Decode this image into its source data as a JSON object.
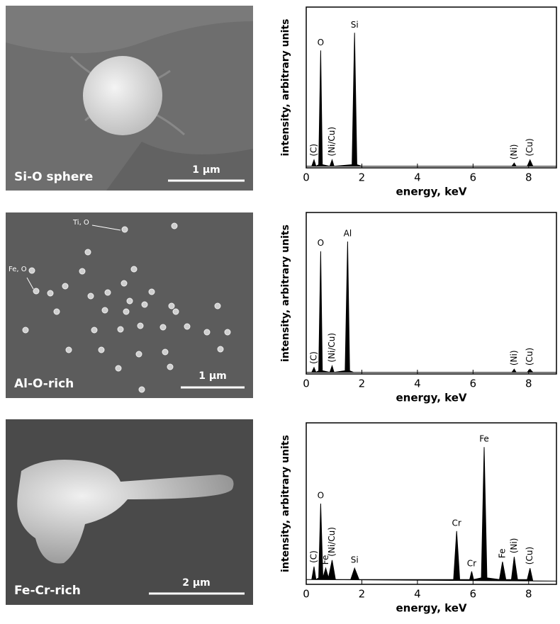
{
  "images": [
    {
      "label": "Si-O sphere",
      "scale_bar": "1 µm"
    },
    {
      "label": "Al-O-rich",
      "scale_bar": "1 µm",
      "callouts": [
        "Ti, O",
        "Fe, O"
      ]
    },
    {
      "label": "Fe-Cr-rich",
      "scale_bar": "2 µm"
    }
  ],
  "chart_data": [
    {
      "type": "area",
      "xlabel": "energy, keV",
      "ylabel": "intensity, arbitrary units",
      "color": "#000000",
      "xlim": [
        0,
        9
      ],
      "xticks": [
        0,
        2,
        4,
        6,
        8
      ],
      "ylim": [
        0,
        100
      ],
      "x": [
        0,
        0.2,
        0.28,
        0.35,
        0.45,
        0.52,
        0.58,
        0.85,
        0.93,
        1.0,
        1.65,
        1.74,
        1.82,
        2.0,
        7.4,
        7.48,
        7.55,
        7.95,
        8.05,
        8.15,
        9
      ],
      "values": [
        1,
        1,
        5,
        1,
        2,
        73,
        2,
        1,
        5,
        1,
        2,
        84,
        2,
        1,
        1,
        3,
        1,
        1,
        5,
        1,
        1
      ],
      "annotations": [
        {
          "text": "(C)",
          "x": 0.28,
          "vertical": true
        },
        {
          "text": "O",
          "x": 0.52,
          "vertical": false
        },
        {
          "text": "(Ni/Cu)",
          "x": 0.93,
          "vertical": true
        },
        {
          "text": "Si",
          "x": 1.74,
          "vertical": false
        },
        {
          "text": "(Ni)",
          "x": 7.48,
          "vertical": true
        },
        {
          "text": "(Cu)",
          "x": 8.05,
          "vertical": true
        }
      ]
    },
    {
      "type": "area",
      "xlabel": "energy, keV",
      "ylabel": "intensity, arbitrary units",
      "color": "#000000",
      "xlim": [
        0,
        9
      ],
      "xticks": [
        0,
        2,
        4,
        6,
        8
      ],
      "ylim": [
        0,
        100
      ],
      "x": [
        0,
        0.2,
        0.28,
        0.35,
        0.45,
        0.52,
        0.58,
        0.85,
        0.93,
        1.0,
        1.4,
        1.49,
        1.56,
        1.7,
        7.4,
        7.48,
        7.55,
        7.95,
        8.05,
        8.15,
        9
      ],
      "values": [
        1,
        1,
        4,
        1,
        2,
        76,
        2,
        1,
        5,
        1,
        2,
        82,
        2,
        1,
        1,
        3,
        1,
        1,
        3,
        1,
        1
      ],
      "annotations": [
        {
          "text": "(C)",
          "x": 0.28,
          "vertical": true
        },
        {
          "text": "O",
          "x": 0.52,
          "vertical": false
        },
        {
          "text": "(Ni/Cu)",
          "x": 0.93,
          "vertical": true
        },
        {
          "text": "Al",
          "x": 1.49,
          "vertical": false
        },
        {
          "text": "(Ni)",
          "x": 7.48,
          "vertical": true
        },
        {
          "text": "(Cu)",
          "x": 8.05,
          "vertical": true
        }
      ]
    },
    {
      "type": "area",
      "xlabel": "energy, keV",
      "ylabel": "intensity, arbitrary units",
      "color": "#000000",
      "xlim": [
        0,
        9
      ],
      "xticks": [
        0,
        2,
        4,
        6,
        8
      ],
      "ylim": [
        0,
        100
      ],
      "x": [
        0,
        0.2,
        0.28,
        0.35,
        0.45,
        0.52,
        0.6,
        0.7,
        0.8,
        0.93,
        1.05,
        1.6,
        1.74,
        1.9,
        5.3,
        5.41,
        5.52,
        5.88,
        5.95,
        6.02,
        6.3,
        6.4,
        6.5,
        6.95,
        7.06,
        7.18,
        7.38,
        7.48,
        7.6,
        7.95,
        8.05,
        8.15,
        9
      ],
      "values": [
        3,
        3,
        11,
        3,
        4,
        50,
        4,
        10,
        4,
        15,
        3,
        3,
        10,
        3,
        3,
        33,
        3,
        3,
        8,
        3,
        4,
        85,
        4,
        3,
        14,
        3,
        3,
        17,
        3,
        3,
        10,
        2,
        2
      ],
      "annotations": [
        {
          "text": "(C)",
          "x": 0.28,
          "vertical": true
        },
        {
          "text": "O",
          "x": 0.52,
          "vertical": false
        },
        {
          "text": "Fe",
          "x": 0.7,
          "vertical": true
        },
        {
          "text": "(Ni/Cu)",
          "x": 0.93,
          "vertical": true
        },
        {
          "text": "Si",
          "x": 1.74,
          "vertical": false
        },
        {
          "text": "Cr",
          "x": 5.41,
          "vertical": false
        },
        {
          "text": "Cr",
          "x": 5.95,
          "vertical": false
        },
        {
          "text": "Fe",
          "x": 6.4,
          "vertical": false
        },
        {
          "text": "Fe",
          "x": 7.06,
          "vertical": true
        },
        {
          "text": "(Ni)",
          "x": 7.48,
          "vertical": true
        },
        {
          "text": "(Cu)",
          "x": 8.05,
          "vertical": true
        }
      ]
    }
  ]
}
